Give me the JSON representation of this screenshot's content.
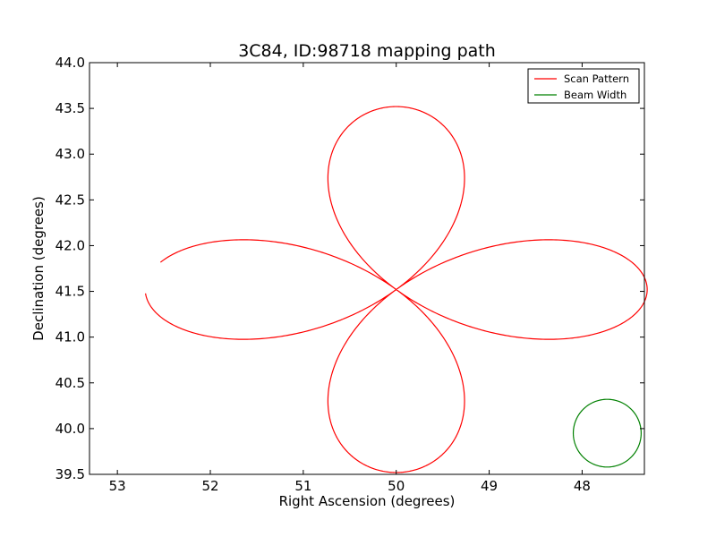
{
  "chart_data": {
    "type": "line",
    "title": "3C84, ID:98718 mapping path",
    "xlabel": "Right Ascension (degrees)",
    "ylabel": "Declination (degrees)",
    "xlim": [
      53.3,
      47.33
    ],
    "ylim": [
      39.5,
      44.0
    ],
    "x_axis_inverted": true,
    "grid": false,
    "legend_position": "top-right",
    "xticks": [
      53,
      52,
      51,
      50,
      49,
      48
    ],
    "xtick_labels": [
      "53",
      "52",
      "51",
      "50",
      "49",
      "48"
    ],
    "yticks": [
      39.5,
      40.0,
      40.5,
      41.0,
      41.5,
      42.0,
      42.5,
      43.0,
      43.5,
      44.0
    ],
    "ytick_labels": [
      "39.5",
      "40.0",
      "40.5",
      "41.0",
      "41.5",
      "42.0",
      "42.5",
      "43.0",
      "43.5",
      "44.0"
    ],
    "series": [
      {
        "name": "Scan Pattern",
        "color": "#ff0000",
        "shape": "four-petal-rose",
        "center": [
          50.0,
          41.52
        ],
        "radius_ra": 2.7,
        "radius_dec": 2.0,
        "gap_start_ra": 52.62,
        "gap_start_dec": 41.49,
        "gap_end_ra": 52.5,
        "gap_end_dec": 41.78
      },
      {
        "name": "Beam Width",
        "color": "#008000",
        "shape": "circle",
        "center": [
          47.73,
          39.95
        ],
        "radius_ra": 0.365,
        "radius_dec": 0.37
      }
    ]
  }
}
